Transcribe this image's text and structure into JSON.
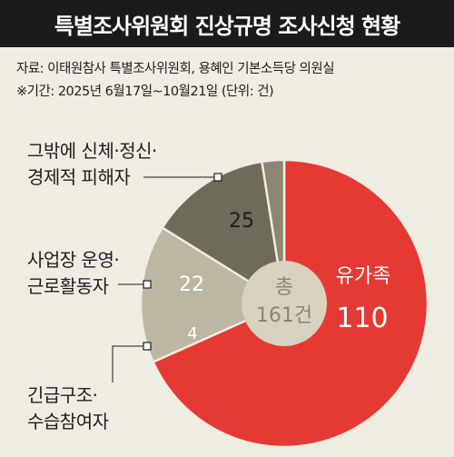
{
  "header": {
    "title": "특별조사위원회 진상규명 조사신청 현황"
  },
  "notes": {
    "source": "자료: 이태원참사 특별조사위원회, 용혜인 기본소득당 의원실",
    "period": "※기간: 2025년 6월17일~10월21일 (단위: 건)"
  },
  "chart_data": {
    "type": "pie",
    "style": "donut",
    "categories": [
      "유가족",
      "신체·정신·경제적 피해자",
      "사업장 운영·근로활동자",
      "긴급구조·수습참여자"
    ],
    "values": [
      110,
      25,
      22,
      4
    ],
    "colors": [
      "#e53a33",
      "#bcb6a3",
      "#6e6b5a",
      "#8b8772"
    ],
    "center_label": {
      "line1": "총",
      "line2": "161건"
    },
    "slice_labels": {
      "family_name": "유가족",
      "family_value": "110",
      "victims_value": "25",
      "business_value": "22",
      "rescue_value": "4"
    },
    "outside_labels": {
      "victims": [
        "그밖에 신체·정신·",
        "경제적 피해자"
      ],
      "business": [
        "사업장 운영·",
        "근로활동자"
      ],
      "rescue": [
        "긴급구조·",
        "수습참여자"
      ]
    }
  }
}
